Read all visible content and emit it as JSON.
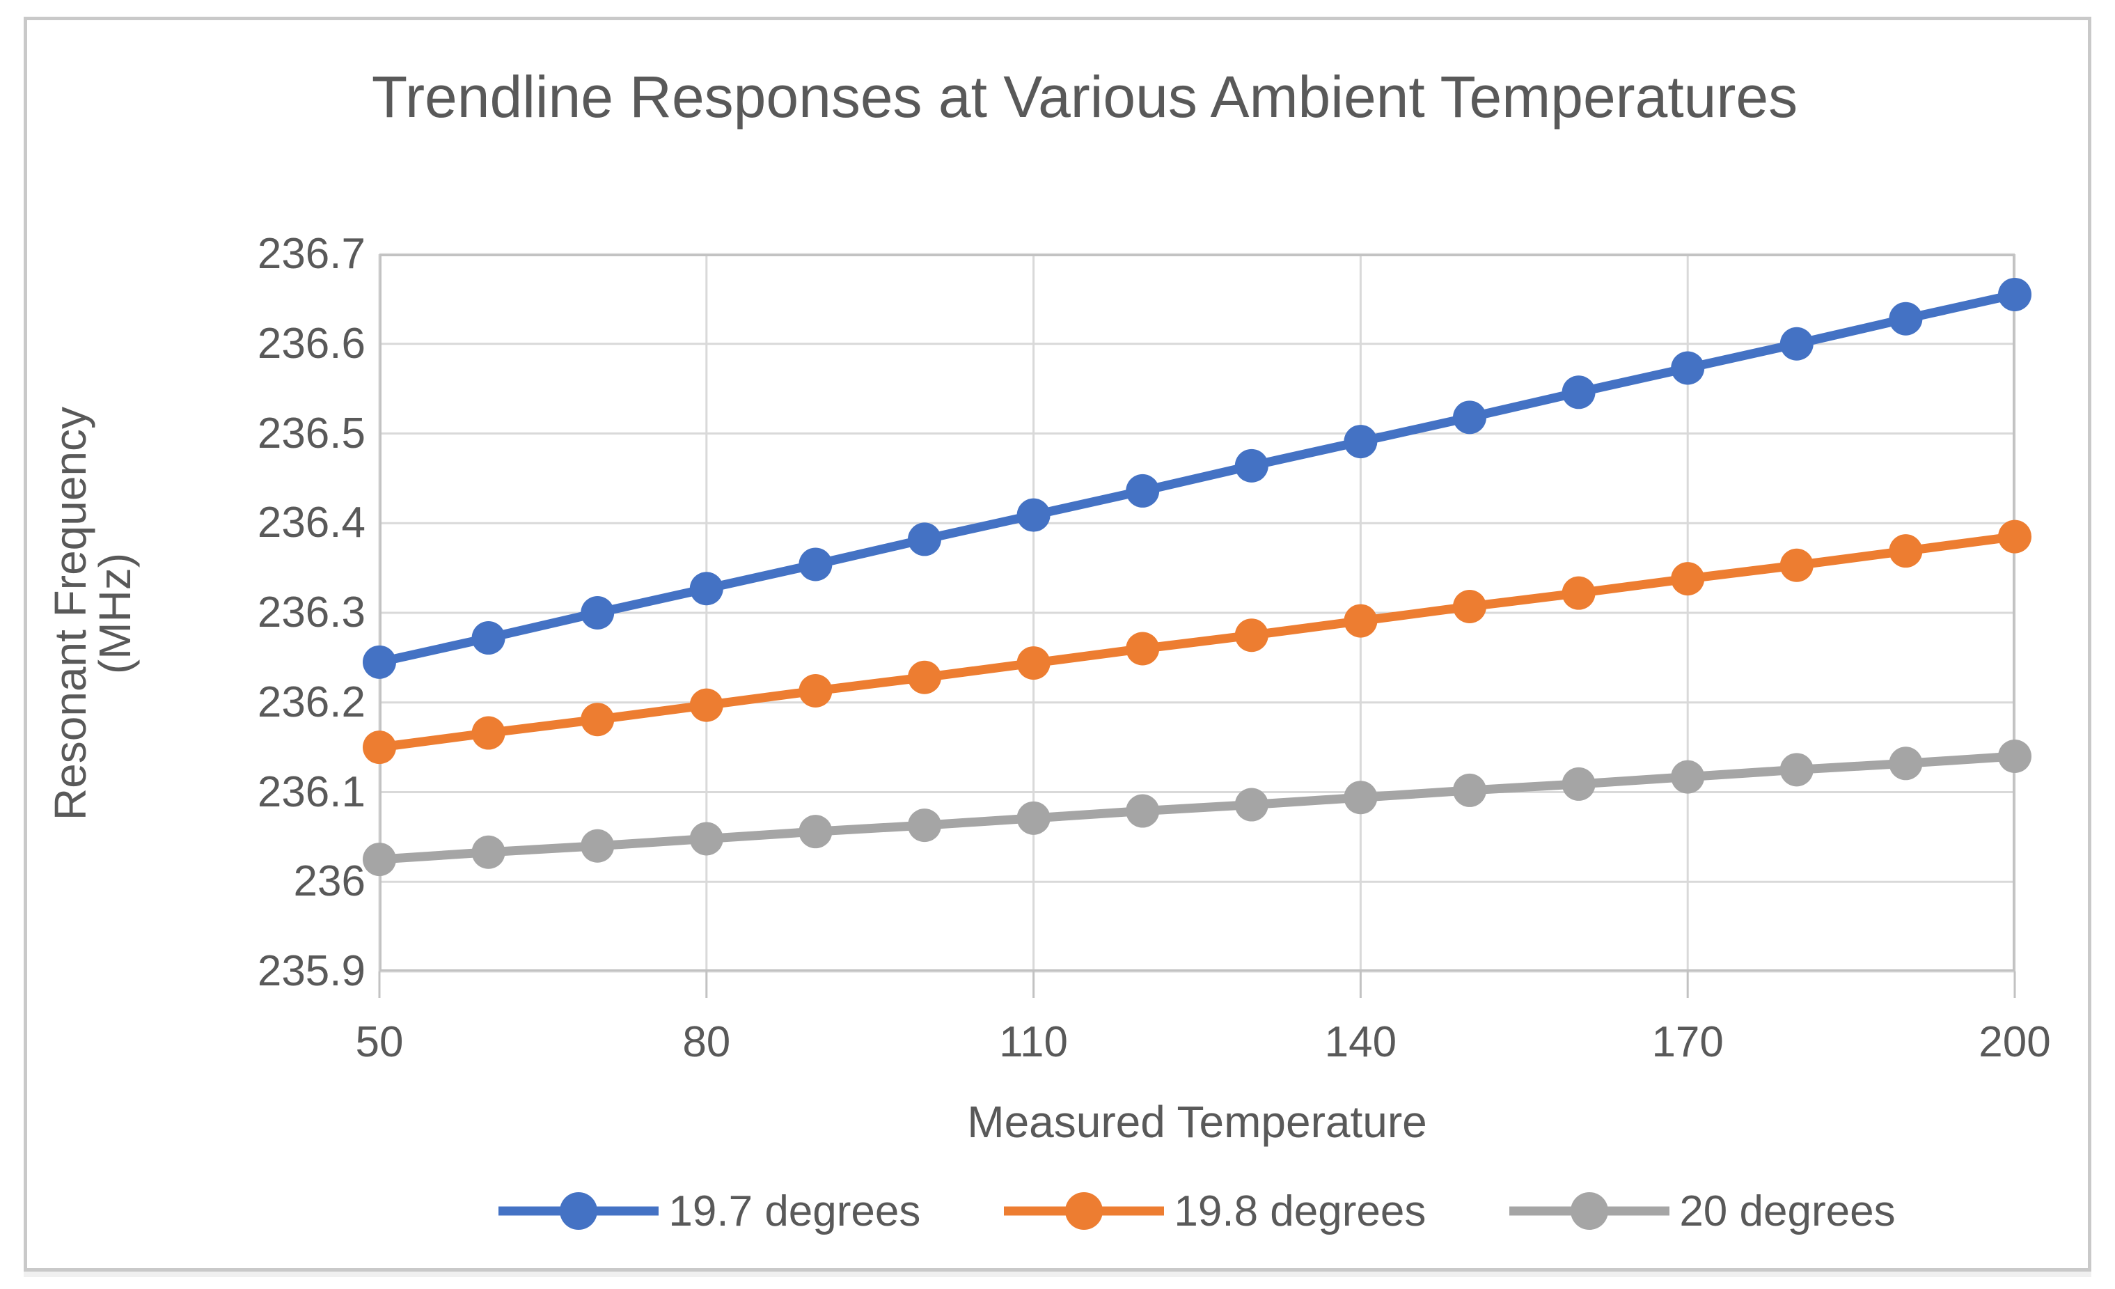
{
  "chart_data": {
    "type": "line",
    "title": "Trendline Responses at Various Ambient Temperatures",
    "xlabel": "Measured Temperature",
    "ylabel": "Resonant Frequency (MHz)",
    "x": [
      50,
      60,
      70,
      80,
      90,
      100,
      110,
      120,
      130,
      140,
      150,
      160,
      170,
      180,
      190,
      200
    ],
    "x_tick_labels": [
      50,
      80,
      110,
      140,
      170,
      200
    ],
    "y_ticks": [
      236.7,
      236.6,
      236.5,
      236.4,
      236.3,
      236.2,
      236.1,
      236.0,
      235.9
    ],
    "xlim": [
      50,
      200
    ],
    "ylim": [
      235.9,
      236.7
    ],
    "grid": true,
    "legend_position": "bottom",
    "series": [
      {
        "name": "19.7 degrees",
        "color": "#4472C4",
        "values": [
          236.245,
          236.272,
          236.3,
          236.327,
          236.354,
          236.382,
          236.409,
          236.436,
          236.464,
          236.491,
          236.518,
          236.546,
          236.573,
          236.6,
          236.628,
          236.655
        ]
      },
      {
        "name": "19.8 degrees",
        "color": "#ED7D31",
        "values": [
          236.15,
          236.166,
          236.181,
          236.197,
          236.213,
          236.228,
          236.244,
          236.26,
          236.275,
          236.291,
          236.307,
          236.322,
          236.338,
          236.353,
          236.369,
          236.385
        ]
      },
      {
        "name": "20 degrees",
        "color": "#A5A5A5",
        "values": [
          236.025,
          236.033,
          236.04,
          236.048,
          236.056,
          236.063,
          236.071,
          236.079,
          236.086,
          236.094,
          236.102,
          236.109,
          236.117,
          236.125,
          236.132,
          236.14
        ]
      }
    ],
    "colors": {
      "text": "#595959",
      "gridline": "#D9D9D9",
      "plot_border": "#C2C2C2",
      "frame_border": "#C9C9C9"
    }
  }
}
